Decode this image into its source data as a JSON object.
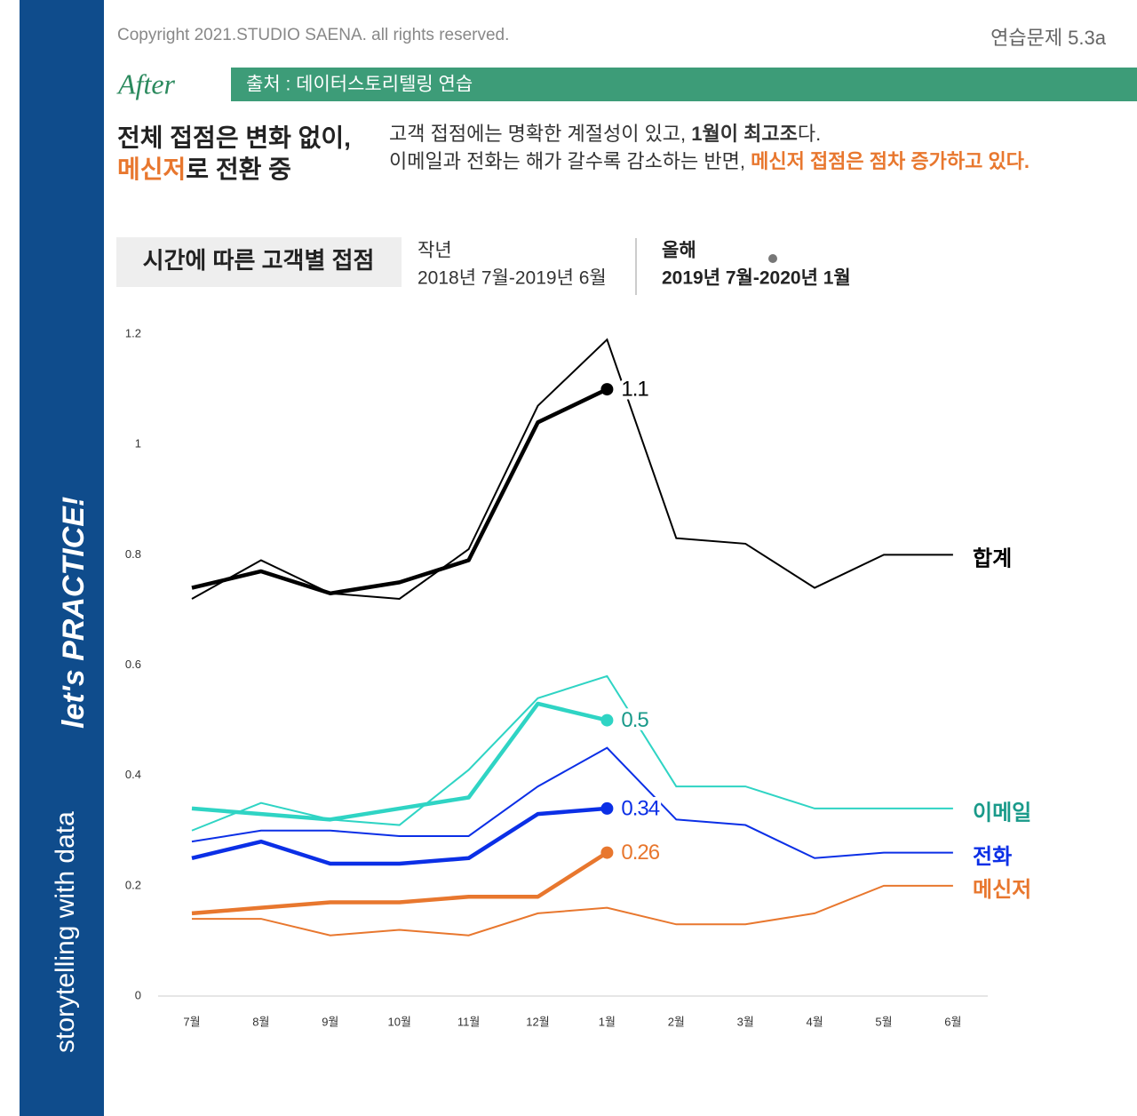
{
  "header": {
    "copyright": "Copyright 2021.STUDIO SAENA. all rights reserved.",
    "exercise": "연습문제 5.3a",
    "tag": "After",
    "source": "출처 : 데이터스토리텔링 연습",
    "headline_1": "전체 접점은 변화 없이,",
    "headline_2a": "메신저",
    "headline_2b": "로 전환 중",
    "desc_1a": "고객 접점에는 명확한 계절성이 있고, ",
    "desc_1b": "1월이 최고조",
    "desc_1c": "다.",
    "desc_2a": "이메일과 전화는 해가 갈수록 감소하는 반면, ",
    "desc_2b": "메신저 접점은 점차 증가하고 있다."
  },
  "sidebar": {
    "brand": "storytelling with data",
    "practice": "let's PRACTICE!"
  },
  "chart_data": {
    "type": "line",
    "title": "시간에 따른 고객별 접점",
    "legend": {
      "previous_title": "작년",
      "previous_range": "2018년 7월-2019년 6월",
      "current_title": "올해",
      "current_range": "2019년 7월-2020년 1월"
    },
    "categories": [
      "7월",
      "8월",
      "9월",
      "10월",
      "11월",
      "12월",
      "1월",
      "2월",
      "3월",
      "4월",
      "5월",
      "6월"
    ],
    "ylim": [
      0,
      1.2
    ],
    "yticks": [
      0,
      0.2,
      0.4,
      0.6,
      0.8,
      1,
      1.2
    ],
    "series": [
      {
        "name": "합계",
        "color": "#000000",
        "label_color": "#000000",
        "values": [
          0.72,
          0.79,
          0.73,
          0.72,
          0.81,
          1.07,
          1.19,
          0.83,
          0.82,
          0.74,
          0.8,
          0.8
        ],
        "current_values": [
          0.74,
          0.77,
          0.73,
          0.75,
          0.79,
          1.04,
          1.1
        ]
      },
      {
        "name": "이메일",
        "color": "#2fd4c4",
        "label_color": "#1a9a8a",
        "values": [
          0.3,
          0.35,
          0.32,
          0.31,
          0.41,
          0.54,
          0.58,
          0.38,
          0.38,
          0.34,
          0.34,
          0.34
        ],
        "current_values": [
          0.34,
          0.33,
          0.32,
          0.34,
          0.36,
          0.53,
          0.5
        ]
      },
      {
        "name": "전화",
        "color": "#0b2fe6",
        "label_color": "#0b2fe6",
        "values": [
          0.28,
          0.3,
          0.3,
          0.29,
          0.29,
          0.38,
          0.45,
          0.32,
          0.31,
          0.25,
          0.26,
          0.26
        ],
        "current_values": [
          0.25,
          0.28,
          0.24,
          0.24,
          0.25,
          0.33,
          0.34
        ]
      },
      {
        "name": "메신저",
        "color": "#e8772e",
        "label_color": "#e8772e",
        "values": [
          0.14,
          0.14,
          0.11,
          0.12,
          0.11,
          0.15,
          0.16,
          0.13,
          0.13,
          0.15,
          0.2,
          0.2
        ],
        "current_values": [
          0.15,
          0.16,
          0.17,
          0.17,
          0.18,
          0.18,
          0.26
        ]
      }
    ]
  }
}
